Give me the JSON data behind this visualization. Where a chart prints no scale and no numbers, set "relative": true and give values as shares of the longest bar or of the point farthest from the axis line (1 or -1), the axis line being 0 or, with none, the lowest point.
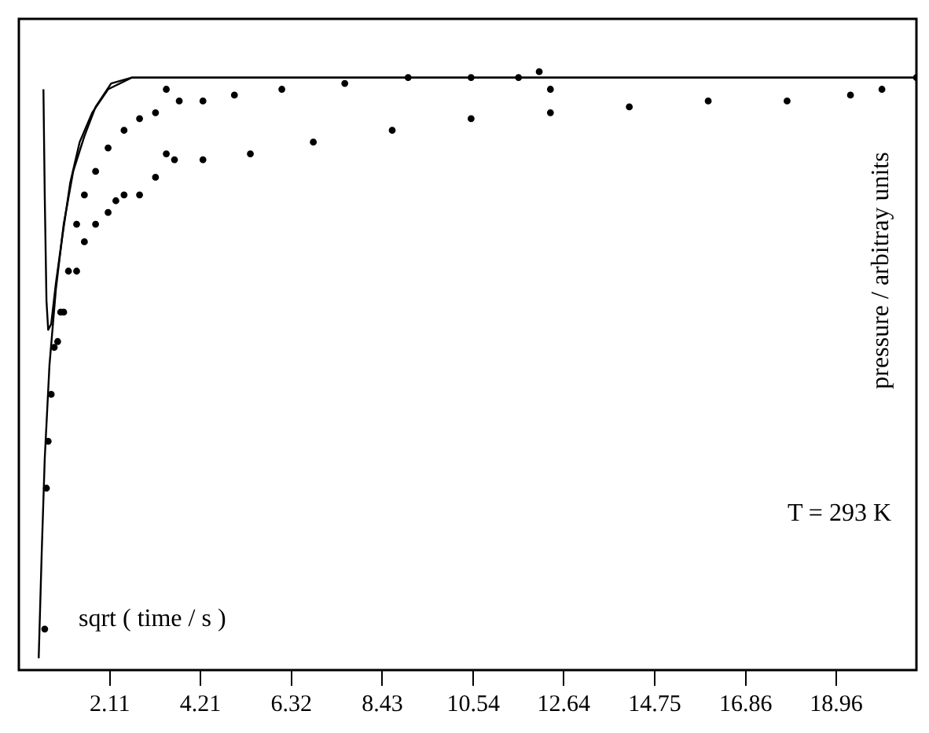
{
  "chart_data": {
    "type": "scatter",
    "relative": true,
    "xlabel": "sqrt ( time / s )",
    "ylabel": "pressure / arbitray units",
    "annotations": [
      "T = 293 K"
    ],
    "xlim": [
      0,
      20.82
    ],
    "xticks": [
      2.11,
      4.21,
      6.32,
      8.43,
      10.54,
      12.64,
      14.75,
      16.86,
      18.96
    ],
    "grid": false,
    "legend": false,
    "tick_labels": "x",
    "series": [
      {
        "type": "line",
        "color": "#000000",
        "marker": "none",
        "x": [
          0.46,
          0.53,
          0.6,
          0.71,
          0.86,
          1.04,
          1.26,
          1.52,
          1.78,
          2.14,
          2.62,
          3.17,
          20.82
        ],
        "values": [
          0,
          0.18,
          0.34,
          0.5,
          0.63,
          0.74,
          0.83,
          0.89,
          0.94,
          0.98,
          0.99,
          0.99,
          0.99
        ]
      },
      {
        "type": "line",
        "color": "#000000",
        "marker": "none",
        "x": [
          0.57,
          0.6,
          0.64,
          0.68,
          0.75,
          0.86,
          1.01,
          1.19,
          1.41,
          1.7,
          2.07,
          2.62,
          3.17,
          20.82
        ],
        "values": [
          0.97,
          0.79,
          0.61,
          0.56,
          0.57,
          0.64,
          0.72,
          0.81,
          0.88,
          0.93,
          0.97,
          0.99,
          0.99,
          0.99
        ]
      },
      {
        "color": "#000000",
        "marker": "circle",
        "x": [
          0.82,
          0.97,
          1.15,
          1.34,
          1.52,
          1.78,
          2.07,
          2.44,
          2.8,
          3.17,
          3.42,
          3.72,
          4.27,
          5.0,
          6.1,
          7.56,
          9.03,
          10.49,
          11.59,
          12.07,
          12.33
        ],
        "values": [
          0.53,
          0.59,
          0.66,
          0.74,
          0.79,
          0.83,
          0.87,
          0.9,
          0.92,
          0.93,
          0.97,
          0.95,
          0.95,
          0.96,
          0.97,
          0.98,
          0.99,
          0.99,
          0.99,
          1,
          0.97
        ]
      },
      {
        "color": "#000000",
        "marker": "circle",
        "x": [
          0.6,
          0.64,
          0.68,
          0.75,
          0.9,
          1.04,
          1.34,
          1.52,
          1.78,
          2.07,
          2.25,
          2.44,
          2.8,
          3.17,
          3.42,
          3.61,
          4.27,
          5.37,
          6.83,
          8.66,
          10.49,
          12.33,
          14.16,
          15.99,
          17.82,
          19.29,
          20.02,
          20.82
        ],
        "values": [
          0.05,
          0.29,
          0.37,
          0.45,
          0.54,
          0.59,
          0.66,
          0.71,
          0.74,
          0.76,
          0.78,
          0.79,
          0.79,
          0.82,
          0.86,
          0.85,
          0.85,
          0.86,
          0.88,
          0.9,
          0.92,
          0.93,
          0.94,
          0.95,
          0.95,
          0.96,
          0.97,
          0.99
        ]
      }
    ]
  }
}
